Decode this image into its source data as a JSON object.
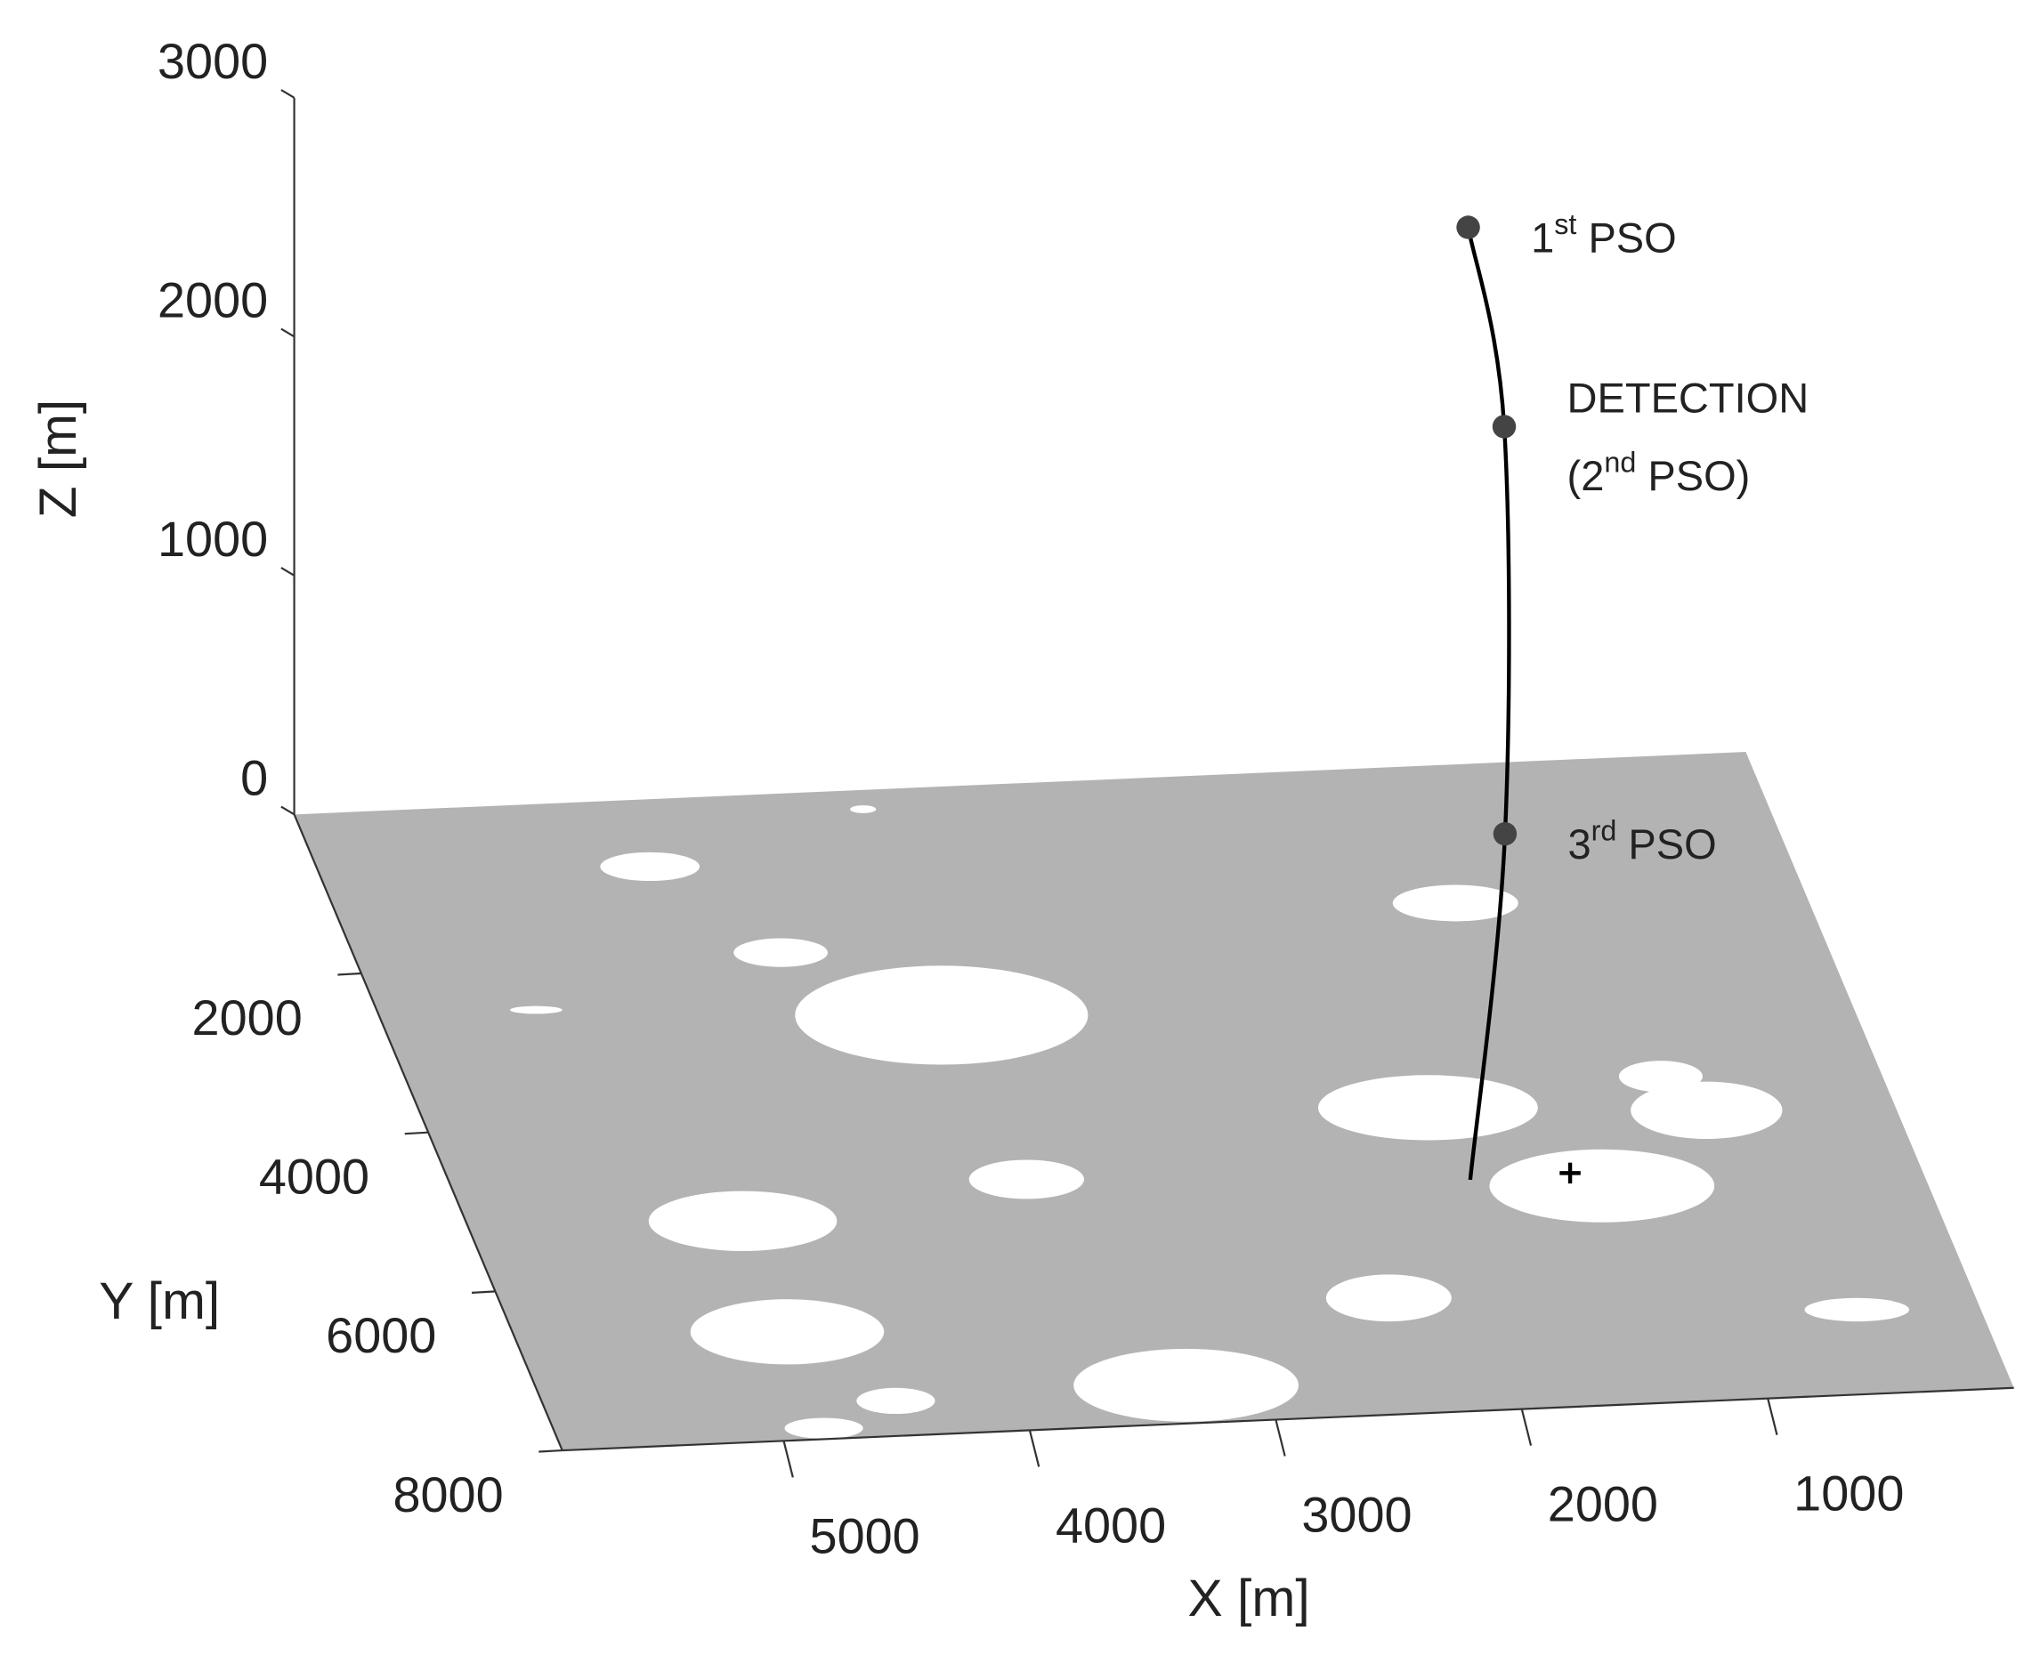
{
  "chart_data": {
    "type": "line3d",
    "xlabel": "X [m]",
    "ylabel": "Y [m]",
    "zlabel": "Z [m]",
    "xlim": [
      0,
      5900
    ],
    "ylim": [
      0,
      8000
    ],
    "zlim": [
      0,
      3000
    ],
    "xticks": [
      1000,
      2000,
      3000,
      4000,
      5000
    ],
    "yticks": [
      2000,
      4000,
      6000,
      8000
    ],
    "zticks": [
      0,
      1000,
      2000,
      3000
    ],
    "x_reversed": true,
    "floor_color": "#b3b3b3",
    "trajectory": {
      "color": "#000000",
      "x": [
        1150,
        1020,
        1300,
        1820
      ],
      "y": [
        160,
        280,
        2360,
        5140
      ],
      "z": [
        2300,
        1500,
        500,
        0
      ]
    },
    "events": [
      {
        "x": 1150,
        "y": 160,
        "z": 2300,
        "label": [
          {
            "pre": "1",
            "sup": "st",
            "post": " PSO"
          }
        ]
      },
      {
        "x": 1020,
        "y": 280,
        "z": 1500,
        "label": [
          {
            "pre": "DETECTION"
          },
          {
            "pre": "(2",
            "sup": "nd",
            "post": " PSO)"
          }
        ]
      },
      {
        "x": 1300,
        "y": 2360,
        "z": 500,
        "label": [
          {
            "pre": "3",
            "sup": "rd",
            "post": " PSO"
          }
        ]
      }
    ],
    "event_color": "#444444",
    "target": {
      "x": 1410,
      "y": 5110,
      "z": 0
    }
  }
}
